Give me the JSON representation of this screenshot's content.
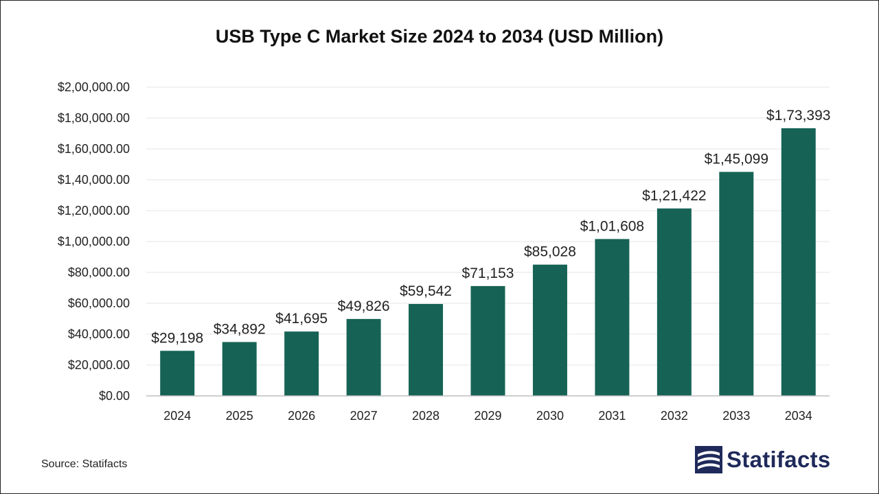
{
  "chart_data": {
    "type": "bar",
    "title": "USB Type C Market Size 2024 to 2034 (USD Million)",
    "categories": [
      "2024",
      "2025",
      "2026",
      "2027",
      "2028",
      "2029",
      "2030",
      "2031",
      "2032",
      "2033",
      "2034"
    ],
    "values": [
      29198,
      34892,
      41695,
      49826,
      59542,
      71153,
      85028,
      101608,
      121422,
      145099,
      173393
    ],
    "data_labels": [
      "$29,198",
      "$34,892",
      "$41,695",
      "$49,826",
      "$59,542",
      "$71,153",
      "$85,028",
      "$1,01,608",
      "$1,21,422",
      "$1,45,099",
      "$1,73,393"
    ],
    "y_ticks": [
      0,
      20000,
      40000,
      60000,
      80000,
      100000,
      120000,
      140000,
      160000,
      180000,
      200000
    ],
    "y_tick_labels": [
      "$0.00",
      "$20,000.00",
      "$40,000.00",
      "$60,000.00",
      "$80,000.00",
      "$1,00,000.00",
      "$1,20,000.00",
      "$1,40,000.00",
      "$1,60,000.00",
      "$1,80,000.00",
      "$2,00,000.00"
    ],
    "ylim": [
      0,
      200000
    ],
    "xlabel": "",
    "ylabel": "",
    "grid": true,
    "bar_color": "#166356"
  },
  "source": "Source: Statifacts",
  "logo": {
    "text": "Statifacts",
    "icon": "statifacts-logo-icon",
    "color": "#1f2a5a"
  }
}
